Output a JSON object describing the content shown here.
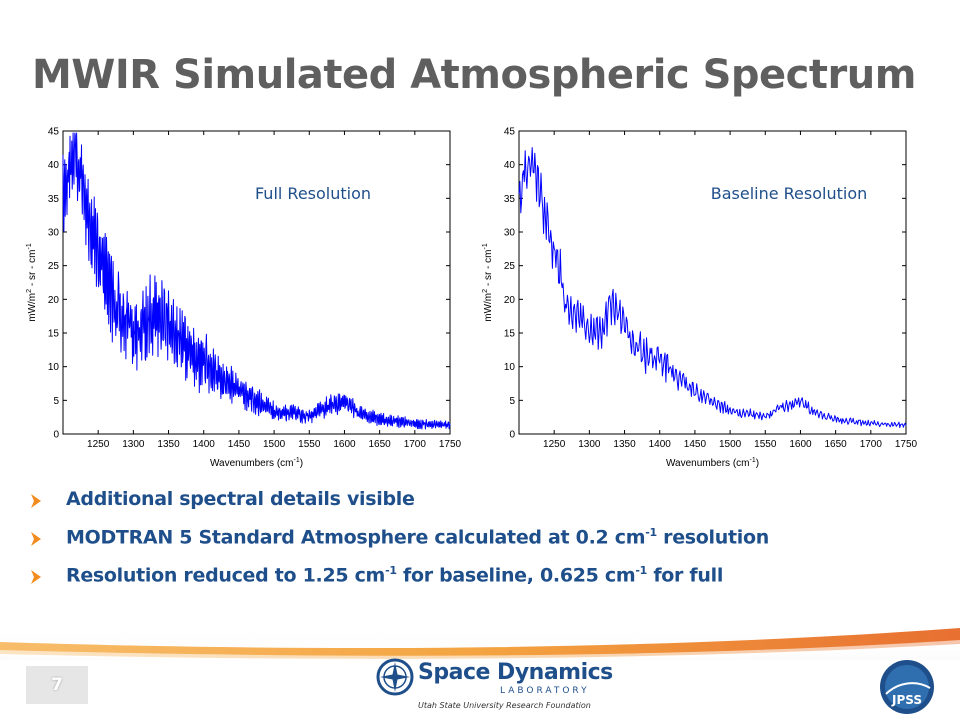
{
  "slide": {
    "title": "MWIR Simulated Atmospheric Spectrum",
    "page_number": "7"
  },
  "bullets": [
    {
      "text": "Additional spectral details visible",
      "parts": []
    },
    {
      "parts": [
        "MODTRAN 5 Standard Atmosphere calculated at 0.2 cm",
        "-1",
        "  resolution"
      ]
    },
    {
      "parts": [
        "Resolution reduced to 1.25 cm",
        "-1",
        " for baseline, 0.625 cm",
        "-1",
        " for full"
      ]
    }
  ],
  "footer": {
    "org_name": "Space Dynamics",
    "org_lab": "LABORATORY",
    "org_sub": "Utah State University Research Foundation",
    "badge_text": "JPSS"
  },
  "colors": {
    "title": "#5f5f5f",
    "bullet_text": "#1f4f8b",
    "bullet_marker": "#f28c1e",
    "series_line": "#0000ff",
    "footer_orange": "#f39a2c"
  },
  "chart_data": [
    {
      "type": "line",
      "annotation": "Full Resolution",
      "xlabel": "Wavenumbers (cm-1)",
      "ylabel": "mW/m2 - sr - cm-1",
      "xlim": [
        1200,
        1750
      ],
      "ylim": [
        0,
        45
      ],
      "xticks": [
        1250,
        1300,
        1350,
        1400,
        1450,
        1500,
        1550,
        1600,
        1650,
        1700,
        1750
      ],
      "yticks": [
        0,
        5,
        10,
        15,
        20,
        25,
        30,
        35,
        40,
        45
      ],
      "grid": false,
      "series": [
        {
          "x": [
            1200,
            1210,
            1220,
            1230,
            1240,
            1250,
            1260,
            1270,
            1280,
            1290,
            1300,
            1310,
            1320,
            1330,
            1340,
            1350,
            1360,
            1370,
            1380,
            1390,
            1400,
            1410,
            1420,
            1430,
            1440,
            1450,
            1460,
            1470,
            1480,
            1490,
            1500,
            1510,
            1520,
            1530,
            1540,
            1550,
            1560,
            1570,
            1580,
            1590,
            1600,
            1610,
            1620,
            1630,
            1640,
            1650,
            1660,
            1670,
            1680,
            1690,
            1700,
            1710,
            1720,
            1730,
            1740,
            1750
          ],
          "y": [
            36,
            40,
            41,
            36,
            30,
            27,
            24,
            20,
            18,
            17,
            15,
            15,
            16,
            18,
            18,
            16,
            14,
            13,
            12,
            11,
            11,
            10,
            9,
            8,
            7,
            6.5,
            6,
            5,
            4.5,
            4,
            3.5,
            3.2,
            3,
            3,
            2.8,
            2.6,
            3.2,
            3.8,
            4.2,
            4.5,
            4.8,
            4,
            3.2,
            2.8,
            2.5,
            2.2,
            2,
            1.9,
            1.8,
            1.7,
            1.6,
            1.5,
            1.5,
            1.4,
            1.4,
            1.3
          ],
          "amp": [
            6,
            6,
            6,
            6,
            6,
            6,
            6,
            6,
            5.5,
            5.5,
            5,
            6,
            6,
            6.5,
            6,
            5,
            5,
            5,
            5,
            4.5,
            4,
            4,
            3.5,
            3,
            3,
            2.5,
            2.2,
            2,
            1.8,
            1.6,
            1.5,
            1.3,
            1.2,
            1.2,
            1.1,
            1,
            1.2,
            1.4,
            1.5,
            1.5,
            1.5,
            1.3,
            1.2,
            1,
            1,
            0.9,
            0.9,
            0.8,
            0.8,
            0.8,
            0.7,
            0.7,
            0.7,
            0.6,
            0.6,
            0.6
          ]
        }
      ]
    },
    {
      "type": "line",
      "annotation": "Baseline Resolution",
      "xlabel": "Wavenumbers (cm-1)",
      "ylabel": "mW/m2 - sr - cm-1",
      "xlim": [
        1200,
        1750
      ],
      "ylim": [
        0,
        45
      ],
      "xticks": [
        1250,
        1300,
        1350,
        1400,
        1450,
        1500,
        1550,
        1600,
        1650,
        1700,
        1750
      ],
      "yticks": [
        0,
        5,
        10,
        15,
        20,
        25,
        30,
        35,
        40,
        45
      ],
      "grid": false,
      "series": [
        {
          "x": [
            1200,
            1210,
            1220,
            1230,
            1240,
            1250,
            1260,
            1270,
            1280,
            1290,
            1300,
            1310,
            1320,
            1330,
            1340,
            1350,
            1360,
            1370,
            1380,
            1390,
            1400,
            1410,
            1420,
            1430,
            1440,
            1450,
            1460,
            1470,
            1480,
            1490,
            1500,
            1510,
            1520,
            1530,
            1540,
            1550,
            1560,
            1570,
            1580,
            1590,
            1600,
            1610,
            1620,
            1630,
            1640,
            1650,
            1660,
            1670,
            1680,
            1690,
            1700,
            1710,
            1720,
            1730,
            1740,
            1750
          ],
          "y": [
            35,
            40,
            40,
            36,
            31,
            27,
            23,
            19,
            18,
            17,
            15,
            15,
            16,
            19,
            18,
            16,
            14,
            13,
            12,
            11,
            11,
            10,
            9,
            8,
            7,
            6.5,
            6,
            5,
            4.5,
            4,
            3.5,
            3.2,
            3,
            3,
            2.8,
            2.6,
            3.2,
            3.8,
            4.2,
            4.5,
            4.8,
            4,
            3.2,
            2.8,
            2.5,
            2.2,
            2,
            1.9,
            1.8,
            1.7,
            1.6,
            1.5,
            1.5,
            1.4,
            1.4,
            1.3
          ],
          "amp": [
            3.5,
            3.5,
            3.5,
            3.5,
            3.5,
            3.5,
            3.5,
            3.5,
            3.2,
            3.2,
            3,
            3.5,
            3.5,
            3.8,
            3.5,
            3,
            3,
            3,
            3,
            2.7,
            2.4,
            2.4,
            2.1,
            1.8,
            1.8,
            1.5,
            1.3,
            1.2,
            1.1,
            1,
            0.9,
            0.8,
            0.7,
            0.7,
            0.7,
            0.6,
            0.7,
            0.8,
            0.9,
            0.9,
            0.9,
            0.8,
            0.7,
            0.6,
            0.6,
            0.5,
            0.5,
            0.5,
            0.5,
            0.5,
            0.4,
            0.4,
            0.4,
            0.4,
            0.4,
            0.4
          ]
        }
      ]
    }
  ]
}
